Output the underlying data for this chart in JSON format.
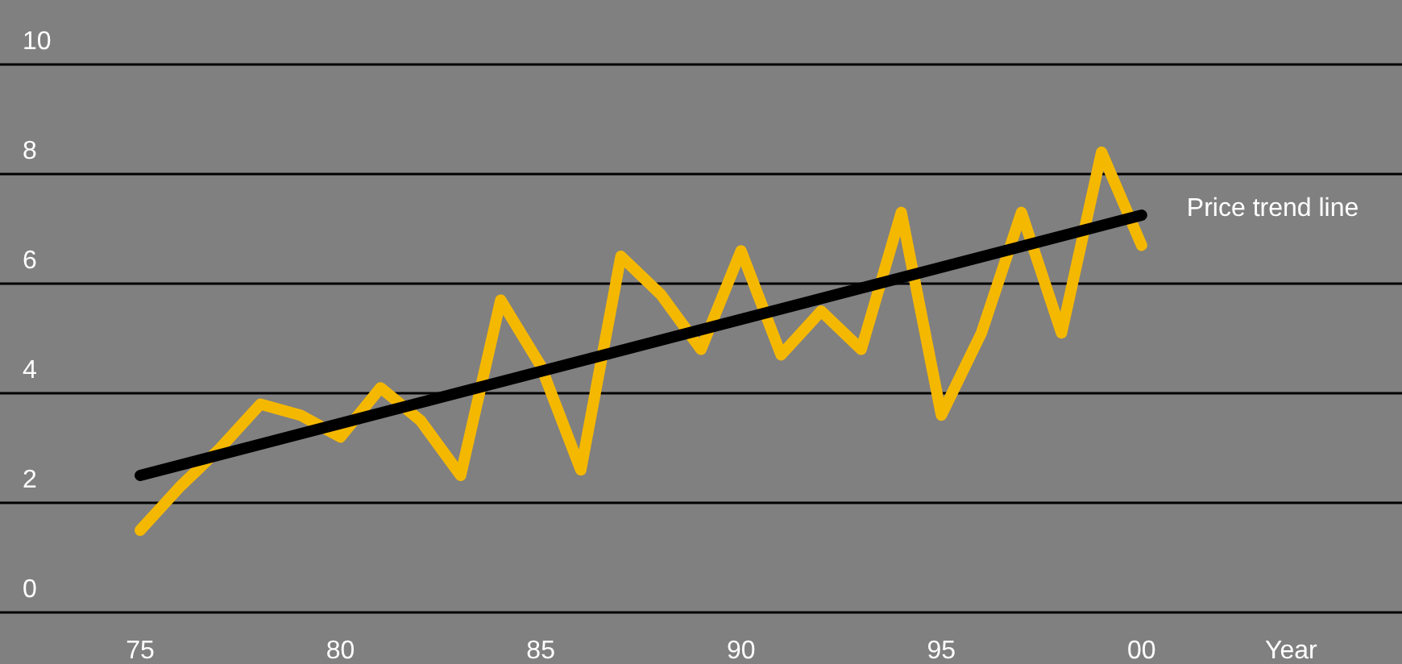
{
  "chart_data": {
    "type": "line",
    "xlabel": "Year",
    "x": [
      1975,
      1976,
      1977,
      1978,
      1979,
      1980,
      1981,
      1982,
      1983,
      1984,
      1985,
      1986,
      1987,
      1988,
      1989,
      1990,
      1991,
      1992,
      1993,
      1994,
      1995,
      1996,
      1997,
      1998,
      1999,
      2000
    ],
    "series": [
      {
        "color": "#f5b800",
        "values": [
          1.5,
          2.3,
          3.0,
          3.8,
          3.6,
          3.2,
          4.1,
          3.5,
          2.5,
          5.7,
          4.5,
          2.6,
          6.5,
          5.8,
          4.8,
          6.6,
          4.7,
          5.5,
          4.8,
          7.3,
          3.6,
          5.1,
          7.3,
          5.1,
          8.4,
          6.7
        ]
      },
      {
        "name": "Price trend line",
        "type": "line",
        "color": "#000000",
        "x": [
          1975,
          2000
        ],
        "values": [
          2.5,
          7.25
        ]
      }
    ],
    "xlim": [
      1971.5,
      2006.5
    ],
    "xticks": [
      {
        "value": 1975,
        "label": "75"
      },
      {
        "value": 1980,
        "label": "80"
      },
      {
        "value": 1985,
        "label": "85"
      },
      {
        "value": 1990,
        "label": "90"
      },
      {
        "value": 1995,
        "label": "95"
      },
      {
        "value": 2000,
        "label": "00"
      }
    ],
    "ylim": [
      0,
      10
    ],
    "yticks": [
      0,
      2,
      4,
      6,
      8,
      10
    ],
    "grid": "y",
    "legend": false,
    "marker": "none",
    "line_style": "solid"
  }
}
